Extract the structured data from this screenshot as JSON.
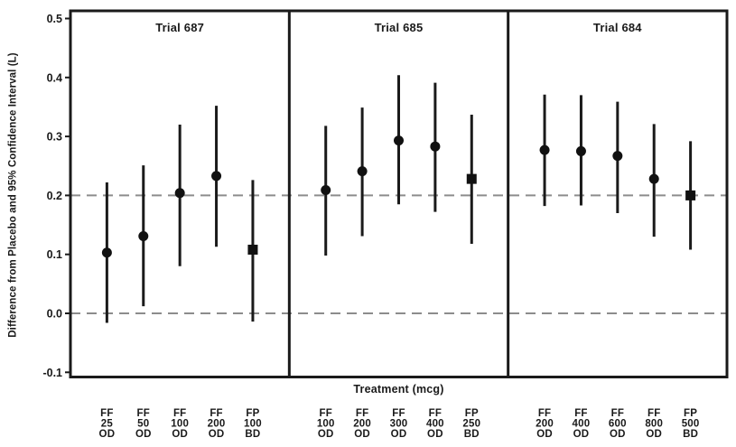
{
  "chart_data": {
    "type": "scatter",
    "subtype": "forest-plot-with-95ci-error-bars",
    "title": "",
    "xlabel": "Treatment (mcg)",
    "ylabel": "Difference from Placebo and 95% Confidence Interval (L)",
    "ylim": [
      -0.1,
      0.5
    ],
    "y_ticks": [
      0.5,
      0.4,
      0.3,
      0.2,
      0.1,
      0.0,
      -0.1
    ],
    "y_tick_labels": [
      "0.5",
      "0.4",
      "0.3",
      "0.2",
      "0.1",
      "0.0",
      "-0.1"
    ],
    "reference_lines": [
      0.2,
      0.0
    ],
    "grid": "off",
    "legend": "none",
    "marker_semantics": {
      "circle": "FF (fluticasone furoate) once daily",
      "square": "FP twice daily"
    },
    "colors": {
      "line": "#1a1a1a",
      "marker": "#111111",
      "frame": "#1a1a1a",
      "reference": "#8c8c8c",
      "background": "#ffffff"
    },
    "panels": [
      {
        "title": "Trial 687",
        "points": [
          {
            "label": [
              "FF",
              "25",
              "OD"
            ],
            "estimate": 0.103,
            "ci_low": -0.016,
            "ci_high": 0.222,
            "marker": "circle"
          },
          {
            "label": [
              "FF",
              "50",
              "OD"
            ],
            "estimate": 0.131,
            "ci_low": 0.012,
            "ci_high": 0.251,
            "marker": "circle"
          },
          {
            "label": [
              "FF",
              "100",
              "OD"
            ],
            "estimate": 0.204,
            "ci_low": 0.08,
            "ci_high": 0.32,
            "marker": "circle"
          },
          {
            "label": [
              "FF",
              "200",
              "OD"
            ],
            "estimate": 0.233,
            "ci_low": 0.113,
            "ci_high": 0.352,
            "marker": "circle"
          },
          {
            "label": [
              "FP",
              "100",
              "BD"
            ],
            "estimate": 0.108,
            "ci_low": -0.014,
            "ci_high": 0.226,
            "marker": "square"
          }
        ]
      },
      {
        "title": "Trial 685",
        "points": [
          {
            "label": [
              "FF",
              "100",
              "OD"
            ],
            "estimate": 0.209,
            "ci_low": 0.098,
            "ci_high": 0.318,
            "marker": "circle"
          },
          {
            "label": [
              "FF",
              "200",
              "OD"
            ],
            "estimate": 0.241,
            "ci_low": 0.131,
            "ci_high": 0.349,
            "marker": "circle"
          },
          {
            "label": [
              "FF",
              "300",
              "OD"
            ],
            "estimate": 0.293,
            "ci_low": 0.185,
            "ci_high": 0.404,
            "marker": "circle"
          },
          {
            "label": [
              "FF",
              "400",
              "OD"
            ],
            "estimate": 0.283,
            "ci_low": 0.172,
            "ci_high": 0.391,
            "marker": "circle"
          },
          {
            "label": [
              "FP",
              "250",
              "BD"
            ],
            "estimate": 0.228,
            "ci_low": 0.118,
            "ci_high": 0.337,
            "marker": "square"
          }
        ]
      },
      {
        "title": "Trial 684",
        "points": [
          {
            "label": [
              "FF",
              "200",
              "OD"
            ],
            "estimate": 0.277,
            "ci_low": 0.182,
            "ci_high": 0.371,
            "marker": "circle"
          },
          {
            "label": [
              "FF",
              "400",
              "OD"
            ],
            "estimate": 0.275,
            "ci_low": 0.183,
            "ci_high": 0.37,
            "marker": "circle"
          },
          {
            "label": [
              "FF",
              "600",
              "OD"
            ],
            "estimate": 0.267,
            "ci_low": 0.17,
            "ci_high": 0.359,
            "marker": "circle"
          },
          {
            "label": [
              "FF",
              "800",
              "OD"
            ],
            "estimate": 0.228,
            "ci_low": 0.13,
            "ci_high": 0.321,
            "marker": "circle"
          },
          {
            "label": [
              "FP",
              "500",
              "BD"
            ],
            "estimate": 0.2,
            "ci_low": 0.108,
            "ci_high": 0.292,
            "marker": "square"
          }
        ]
      }
    ]
  }
}
